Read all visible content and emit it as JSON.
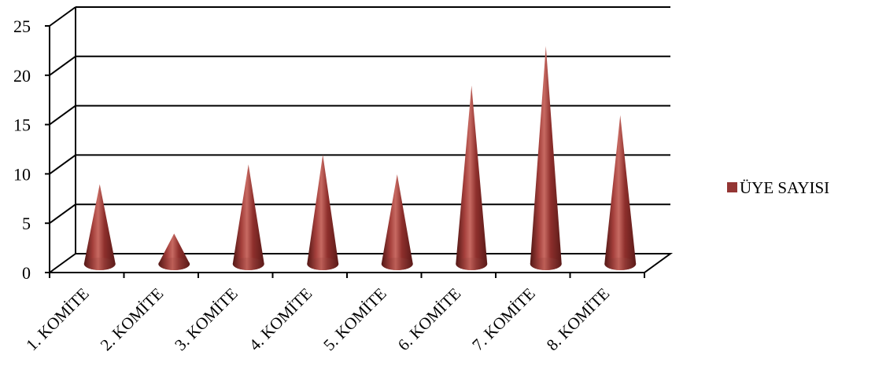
{
  "chart_data": {
    "type": "bar",
    "style": "3d-cone",
    "categories": [
      "1. KOMİTE",
      "2. KOMİTE",
      "3. KOMİTE",
      "4. KOMİTE",
      "5. KOMİTE",
      "6. KOMİTE",
      "7. KOMİTE",
      "8. KOMİTE"
    ],
    "series": [
      {
        "name": "ÜYE SAYISI",
        "values": [
          8,
          3,
          10,
          11,
          9,
          18,
          22,
          15
        ],
        "color": "#943634"
      }
    ],
    "ylim": [
      0,
      25
    ],
    "yticks": [
      0,
      5,
      10,
      15,
      20,
      25
    ],
    "grid": true,
    "legend": "right"
  }
}
